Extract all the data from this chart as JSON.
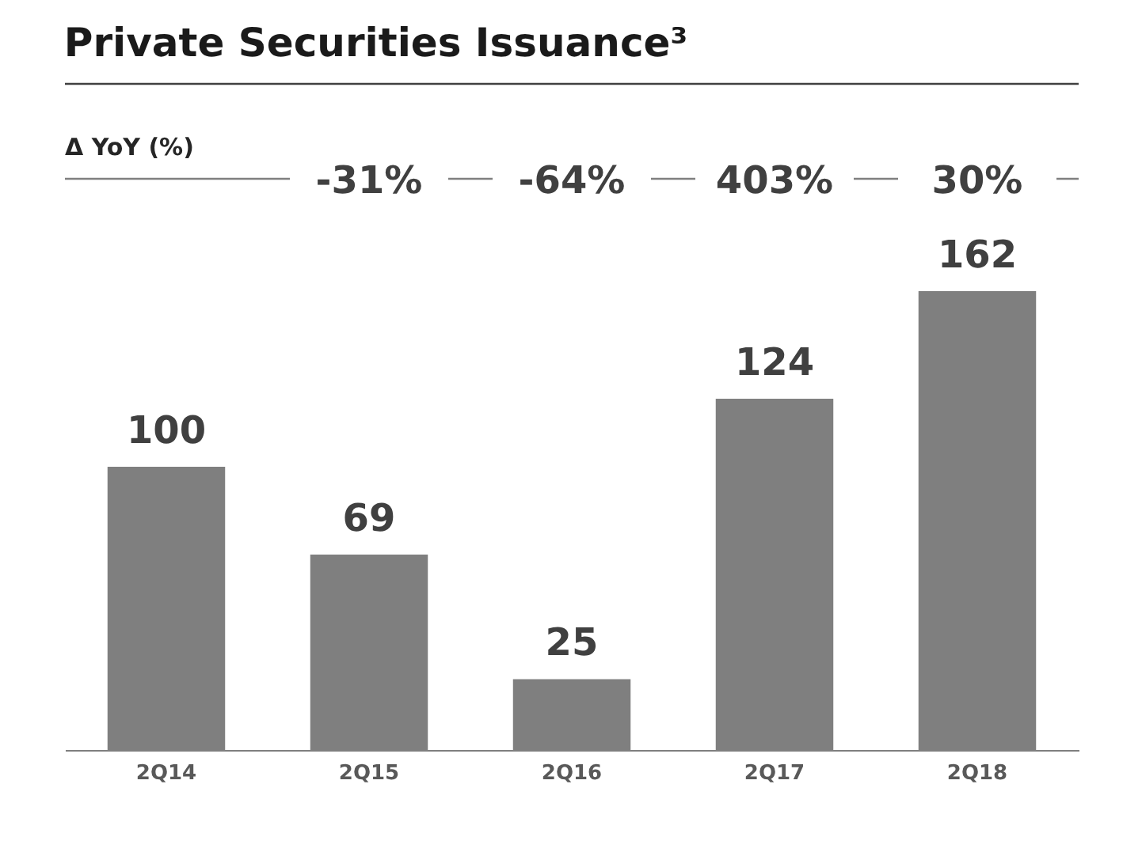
{
  "chart_data": {
    "type": "bar",
    "title": "Private Securities Issuance³",
    "categories": [
      "2Q14",
      "2Q15",
      "2Q16",
      "2Q17",
      "2Q18"
    ],
    "values": [
      100,
      69,
      25,
      124,
      162
    ],
    "color": "#7f7f7f",
    "data_labels": true,
    "grid": false,
    "annotations": [
      "Δ YoY (%)",
      "-31%",
      "-64%",
      "403%",
      "30%"
    ]
  }
}
